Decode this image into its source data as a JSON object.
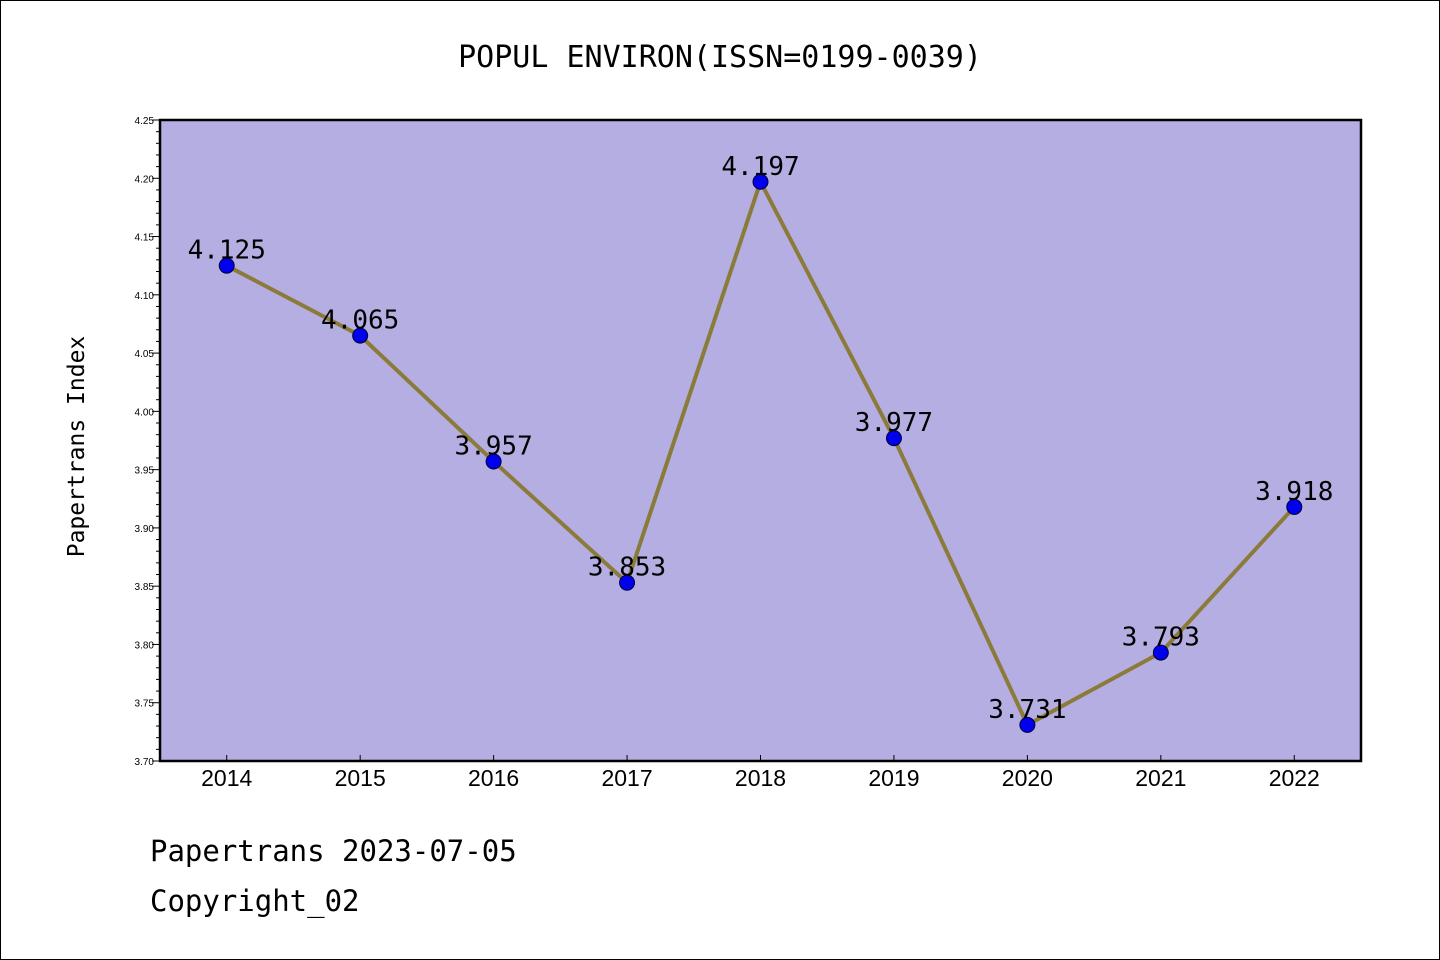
{
  "chart_data": {
    "type": "line",
    "title": "POPUL ENVIRON(ISSN=0199-0039)",
    "xlabel": "",
    "ylabel": "Papertrans Index",
    "categories": [
      "2014",
      "2015",
      "2016",
      "2017",
      "2018",
      "2019",
      "2020",
      "2021",
      "2022"
    ],
    "values": [
      4.125,
      4.065,
      3.957,
      3.853,
      4.197,
      3.977,
      3.731,
      3.793,
      3.918
    ],
    "data_labels": [
      "4.125",
      "4.065",
      "3.957",
      "3.853",
      "4.197",
      "3.977",
      "3.731",
      "3.793",
      "3.918"
    ],
    "ylim": [
      3.7,
      4.25
    ],
    "yticks": [
      "3.70",
      "3.75",
      "3.80",
      "3.85",
      "3.90",
      "3.95",
      "4.00",
      "4.05",
      "4.10",
      "4.15",
      "4.20",
      "4.25"
    ],
    "grid": false,
    "legend": "none",
    "colors": {
      "plot_background": "#b5aee2",
      "line": "#8b7b3b",
      "marker": "#0000ee"
    }
  },
  "footer": {
    "line1": "Papertrans 2023-07-05",
    "line2": "Copyright_02"
  }
}
